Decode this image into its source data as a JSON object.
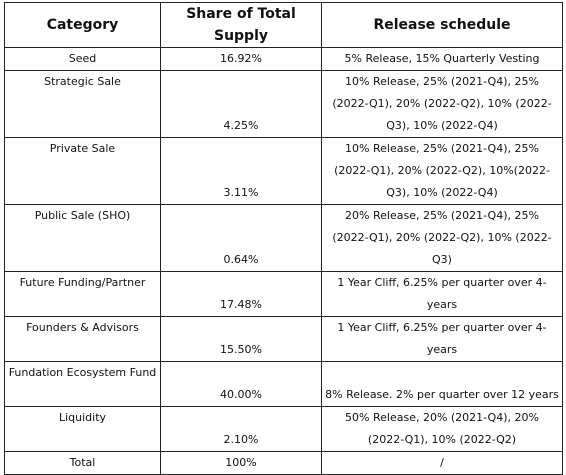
{
  "table": {
    "headers": [
      "Category",
      "Share of Total Supply",
      "Release schedule"
    ],
    "rows": [
      {
        "category": "Seed",
        "share": "16.92%",
        "schedule": "5% Release, 15% Quarterly Vesting"
      },
      {
        "category": "Strategic Sale",
        "share": "4.25%",
        "schedule": "10% Release, 25% (2021-Q4), 25% (2022-Q1), 20% (2022-Q2), 10% (2022-Q3), 10% (2022-Q4)"
      },
      {
        "category": "Private Sale",
        "share": "3.11%",
        "schedule": "10% Release, 25% (2021-Q4), 25% (2022-Q1), 20% (2022-Q2), 10%(2022-Q3), 10% (2022-Q4)"
      },
      {
        "category": "Public Sale (SHO)",
        "share": "0.64%",
        "schedule": "20% Release, 25% (2021-Q4), 25% (2022-Q1), 20% (2022-Q2), 10% (2022-Q3)"
      },
      {
        "category": "Future Funding/Partner",
        "share": "17.48%",
        "schedule": "1 Year Cliff, 6.25% per quarter over 4-years"
      },
      {
        "category": "Founders & Advisors",
        "share": "15.50%",
        "schedule": "1 Year Cliff, 6.25% per quarter over 4-years"
      },
      {
        "category": "Fundation Ecosystem Fund",
        "share": "40.00%",
        "schedule": "8% Release. 2% per quarter over 12 years"
      },
      {
        "category": "Liquidity",
        "share": "2.10%",
        "schedule": "50% Release, 20% (2021-Q4), 20% (2022-Q1), 10% (2022-Q2)"
      },
      {
        "category": "Total",
        "share": "100%",
        "schedule": "/"
      }
    ]
  }
}
